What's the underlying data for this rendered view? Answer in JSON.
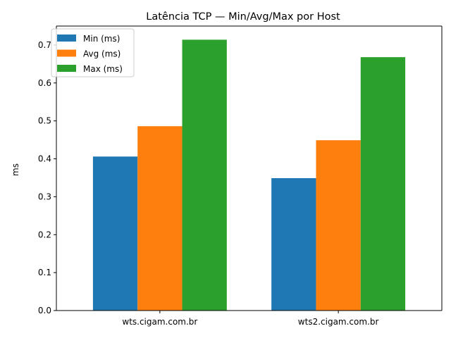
{
  "chart_data": {
    "type": "bar",
    "title": "Latência TCP — Min/Avg/Max por Host",
    "xlabel": "",
    "ylabel": "ms",
    "categories": [
      "wts.cigam.com.br",
      "wts2.cigam.com.br"
    ],
    "series": [
      {
        "name": "Min (ms)",
        "values": [
          0.406,
          0.349
        ],
        "color": "#1f77b4"
      },
      {
        "name": "Avg (ms)",
        "values": [
          0.486,
          0.449
        ],
        "color": "#ff7f0e"
      },
      {
        "name": "Max (ms)",
        "values": [
          0.714,
          0.668
        ],
        "color": "#2ca02c"
      }
    ],
    "ylim": [
      0,
      0.75
    ],
    "yticks": [
      "0.0",
      "0.1",
      "0.2",
      "0.3",
      "0.4",
      "0.5",
      "0.6",
      "0.7"
    ],
    "grid": false,
    "legend_position": "top-left"
  }
}
